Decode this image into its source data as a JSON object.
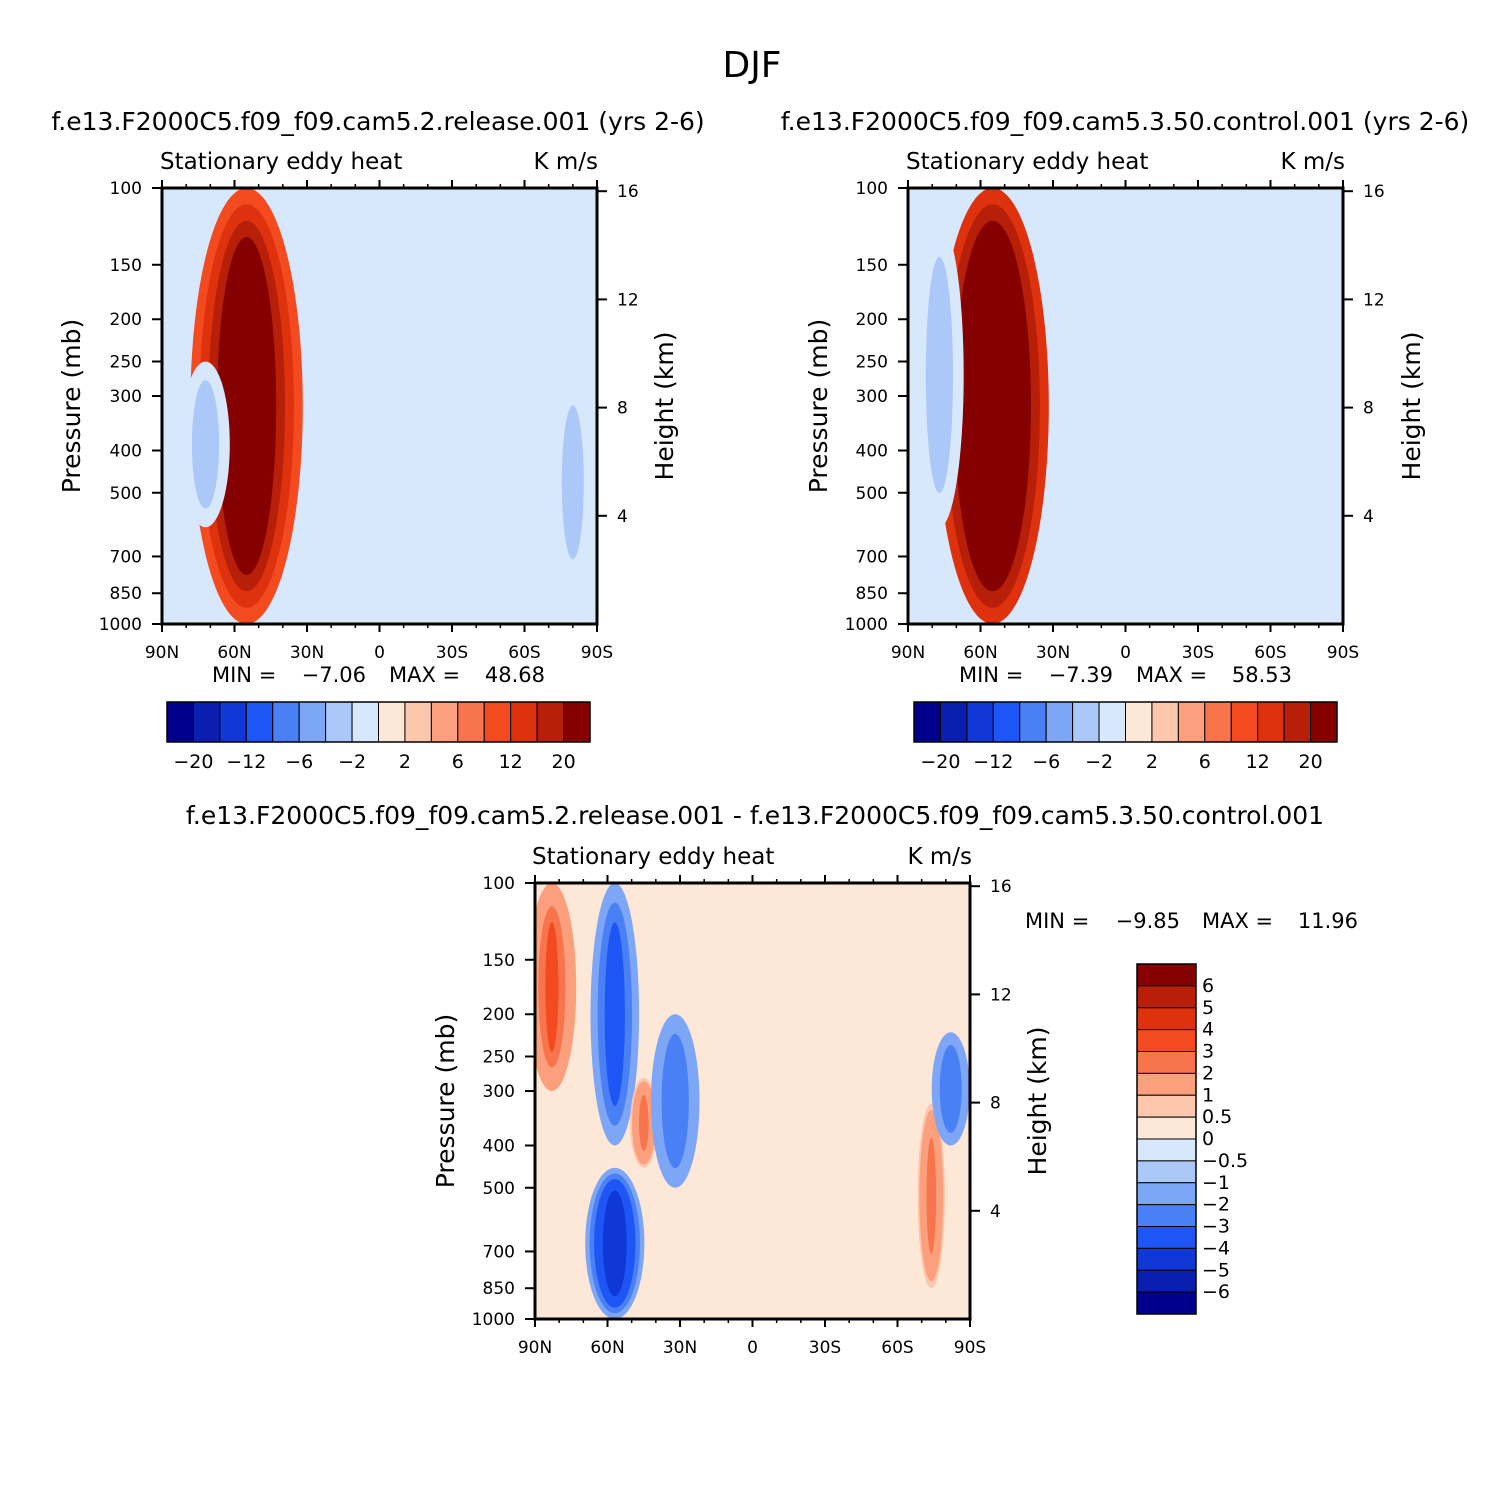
{
  "figure": {
    "title": "DJF"
  },
  "colors": {
    "panel_scale": [
      "#00008c",
      "#0a1faf",
      "#0f38d7",
      "#1e55f5",
      "#4a80f6",
      "#7ea6f6",
      "#abc8f8",
      "#d8e8fc",
      "#fde8d8",
      "#fcc7ac",
      "#fb9f7c",
      "#f8744d",
      "#f44a1f",
      "#de310d",
      "#b81f09",
      "#850000"
    ],
    "diff_scale": [
      "#00008c",
      "#0a1faf",
      "#0f38d7",
      "#1e55f5",
      "#4a80f6",
      "#7ea6f6",
      "#abc8f8",
      "#d8e8fc",
      "#fde8d8",
      "#fcc7ac",
      "#fb9f7c",
      "#f8744d",
      "#f44a1f",
      "#de310d",
      "#b81f09",
      "#850000"
    ]
  },
  "chart_data": [
    {
      "type": "heatmap",
      "id": "panel-a",
      "case_title": "f.e13.F2000C5.f09_f09.cam5.2.release.001  (yrs 2-6)",
      "var_label": "Stationary  eddy  heat",
      "units_label": "K  m/s",
      "ylabel": "Pressure  (mb)",
      "y2label": "Height  (km)",
      "x_ticks": [
        "90N",
        "60N",
        "30N",
        "0",
        "30S",
        "60S",
        "90S"
      ],
      "y_ticks": [
        "100",
        "150",
        "200",
        "250",
        "300",
        "400",
        "500",
        "700",
        "850",
        "1000"
      ],
      "y_tick_values": [
        100,
        150,
        200,
        250,
        300,
        400,
        500,
        700,
        850,
        1000
      ],
      "y2_ticks": [
        "16",
        "12",
        "8",
        "4"
      ],
      "y2_tick_values": [
        16,
        12,
        8,
        4
      ],
      "min_label": "MIN  =",
      "min_value": "-7.06",
      "max_label": "MAX  =",
      "max_value": "48.68",
      "colorbar_labels": [
        "-20",
        "-12",
        "-6",
        "-2",
        "2",
        "6",
        "12",
        "20"
      ],
      "features": [
        {
          "lat": 55,
          "p": 500,
          "value": 30,
          "lat_width": 10,
          "p_top": 100,
          "p_bot": 1000
        },
        {
          "lat": 72,
          "p": 400,
          "value": -3,
          "lat_width": 4,
          "p_top": 250,
          "p_bot": 600
        },
        {
          "lat": -80,
          "p": 400,
          "value": -3,
          "lat_width": 3,
          "p_top": 280,
          "p_bot": 800
        }
      ]
    },
    {
      "type": "heatmap",
      "id": "panel-b",
      "case_title": "f.e13.F2000C5.f09_f09.cam5.3.50.control.001  (yrs 2-6)",
      "var_label": "Stationary  eddy  heat",
      "units_label": "K  m/s",
      "ylabel": "Pressure  (mb)",
      "y2label": "Height  (km)",
      "x_ticks": [
        "90N",
        "60N",
        "30N",
        "0",
        "30S",
        "60S",
        "90S"
      ],
      "y_ticks": [
        "100",
        "150",
        "200",
        "250",
        "300",
        "400",
        "500",
        "700",
        "850",
        "1000"
      ],
      "y_tick_values": [
        100,
        150,
        200,
        250,
        300,
        400,
        500,
        700,
        850,
        1000
      ],
      "y2_ticks": [
        "16",
        "12",
        "8",
        "4"
      ],
      "y2_tick_values": [
        16,
        12,
        8,
        4
      ],
      "min_label": "MIN  =",
      "min_value": "-7.39",
      "max_label": "MAX  =",
      "max_value": "58.53",
      "colorbar_labels": [
        "-20",
        "-12",
        "-6",
        "-2",
        "2",
        "6",
        "12",
        "20"
      ],
      "features": [
        {
          "lat": 55,
          "p": 500,
          "value": 35,
          "lat_width": 10,
          "p_top": 100,
          "p_bot": 1000
        },
        {
          "lat": 77,
          "p": 400,
          "value": -3,
          "lat_width": 4,
          "p_top": 120,
          "p_bot": 600
        },
        {
          "lat": -80,
          "p": 500,
          "value": -2,
          "lat_width": 3,
          "p_top": 350,
          "p_bot": 850
        }
      ]
    },
    {
      "type": "heatmap",
      "id": "panel-diff",
      "case_title": "f.e13.F2000C5.f09_f09.cam5.2.release.001  -  f.e13.F2000C5.f09_f09.cam5.3.50.control.001",
      "var_label": "Stationary  eddy  heat",
      "units_label": "K  m/s",
      "ylabel": "Pressure  (mb)",
      "y2label": "Height  (km)",
      "x_ticks": [
        "90N",
        "60N",
        "30N",
        "0",
        "30S",
        "60S",
        "90S"
      ],
      "y_ticks": [
        "100",
        "150",
        "200",
        "250",
        "300",
        "400",
        "500",
        "700",
        "850",
        "1000"
      ],
      "y_tick_values": [
        100,
        150,
        200,
        250,
        300,
        400,
        500,
        700,
        850,
        1000
      ],
      "y2_ticks": [
        "16",
        "12",
        "8",
        "4"
      ],
      "y2_tick_values": [
        16,
        12,
        8,
        4
      ],
      "min_label": "MIN  =",
      "min_value": "-9.85",
      "max_label": "MAX  =",
      "max_value": "11.96",
      "colorbar_labels": [
        "6",
        "5",
        "4",
        "3",
        "2",
        "1",
        "0.5",
        "0",
        "-0.5",
        "-1",
        "-2",
        "-3",
        "-4",
        "-5",
        "-6"
      ],
      "features": [
        {
          "lat": 83,
          "p": 200,
          "value": 3,
          "lat_width": 4,
          "p_top": 100,
          "p_bot": 300
        },
        {
          "lat": 57,
          "p": 180,
          "value": -4,
          "lat_width": 4,
          "p_top": 100,
          "p_bot": 400
        },
        {
          "lat": 57,
          "p": 800,
          "value": -5,
          "lat_width": 5,
          "p_top": 450,
          "p_bot": 1000
        },
        {
          "lat": 45,
          "p": 350,
          "value": 2,
          "lat_width": 2,
          "p_top": 280,
          "p_bot": 450
        },
        {
          "lat": 32,
          "p": 300,
          "value": -3,
          "lat_width": 4,
          "p_top": 200,
          "p_bot": 500
        },
        {
          "lat": -74,
          "p": 550,
          "value": 2,
          "lat_width": 2,
          "p_top": 320,
          "p_bot": 850
        },
        {
          "lat": -82,
          "p": 280,
          "value": -3,
          "lat_width": 3,
          "p_top": 220,
          "p_bot": 400
        }
      ]
    }
  ]
}
